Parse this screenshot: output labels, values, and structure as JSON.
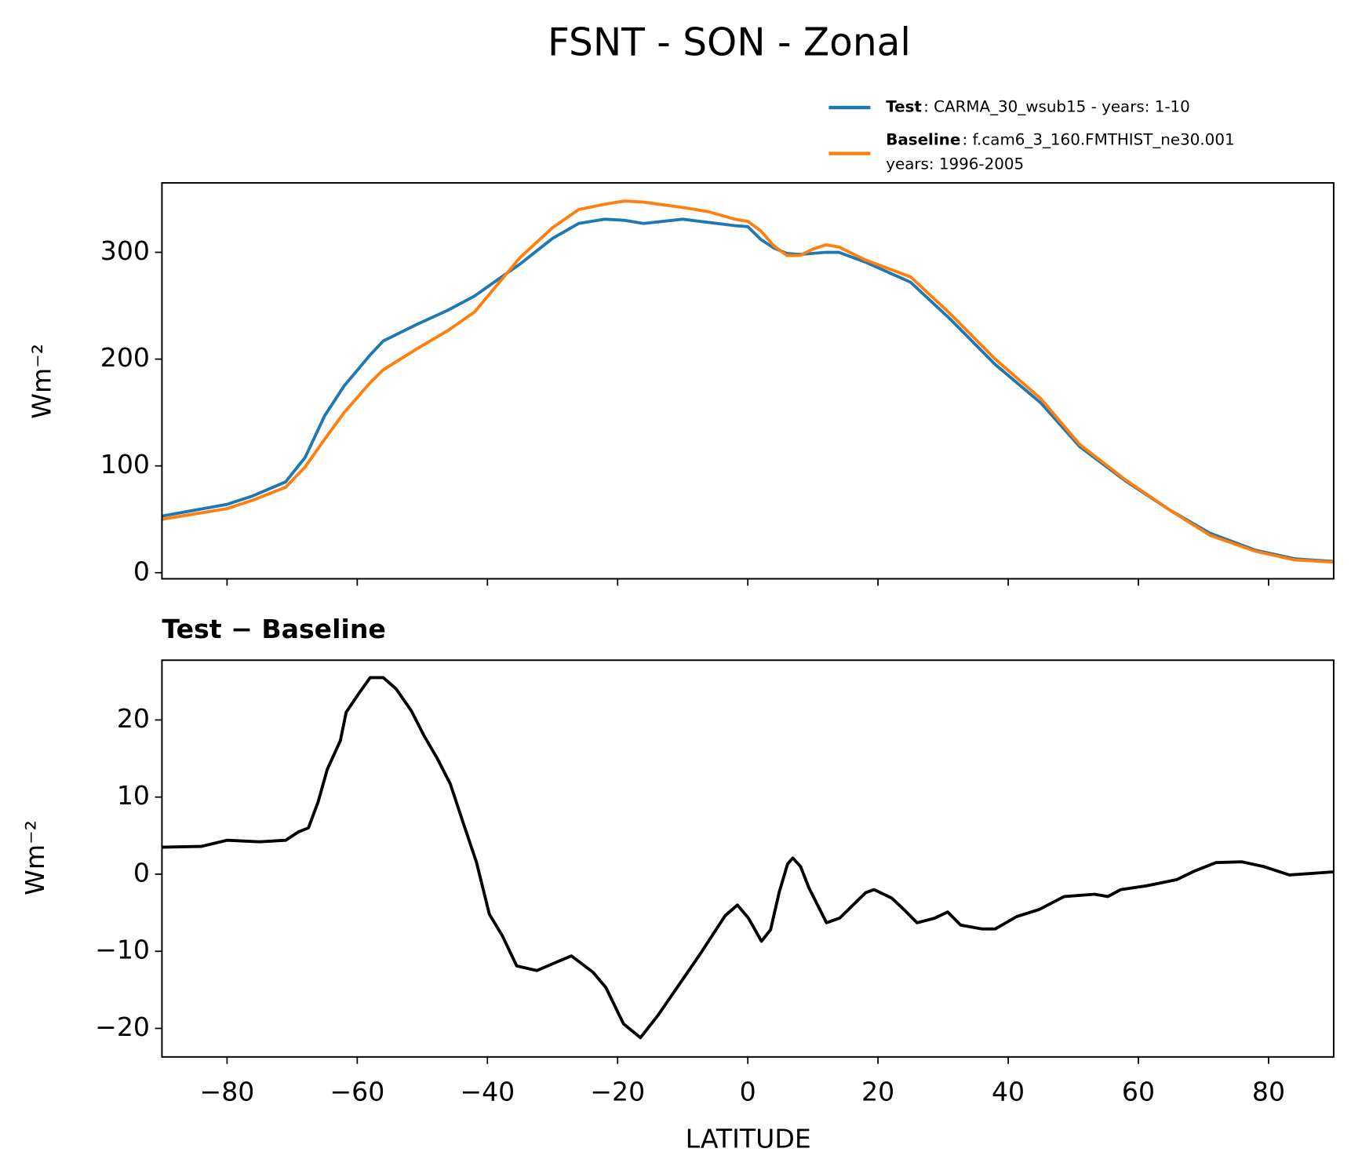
{
  "chart_data": [
    {
      "type": "line",
      "title": "FSNT - SON - Zonal",
      "ylabel": "Wm⁻²",
      "x": [
        -90,
        -80,
        -76,
        -71,
        -68,
        -65,
        -62,
        -58,
        -56,
        -51,
        -46,
        -42,
        -35,
        -30,
        -26,
        -22,
        -19,
        -16,
        -10,
        -6,
        -2,
        0,
        2,
        4,
        6,
        8,
        10,
        12,
        14,
        18,
        25,
        31,
        38,
        45,
        51,
        58,
        65,
        71,
        78,
        84,
        90
      ],
      "series": [
        {
          "name": "Test",
          "label": [
            ": CARMA_30_wsub15 - years: 1-10"
          ],
          "color": "#1f77b4",
          "values": [
            53,
            64,
            72,
            85,
            108,
            147,
            175,
            204,
            217,
            232,
            246,
            259,
            289,
            313,
            327,
            331,
            330,
            327,
            331,
            328,
            325,
            324,
            312,
            304,
            299,
            298,
            299,
            300,
            300,
            291,
            272,
            238,
            195,
            159,
            118,
            86,
            58,
            37,
            21,
            13,
            10.5
          ]
        },
        {
          "name": "Baseline",
          "label": [
            ": f.cam6_3_160.FMTHIST_ne30.001",
            "years: 1996-2005"
          ],
          "color": "#ff7f0e",
          "values": [
            50,
            60,
            68,
            80,
            99,
            125,
            150,
            178,
            190,
            209,
            227,
            244,
            295,
            323,
            340,
            345,
            348,
            347,
            342,
            338,
            331,
            329,
            320,
            306,
            297,
            297,
            303,
            307,
            305,
            293,
            277,
            243,
            200,
            163,
            120,
            87,
            58,
            35,
            20,
            12,
            10
          ]
        }
      ],
      "xlim": [
        -90,
        90
      ],
      "ylim": [
        -5.7,
        365
      ],
      "xticks": [
        {
          "value": -80,
          "label": "−80"
        },
        {
          "value": -60,
          "label": "−60"
        },
        {
          "value": -40,
          "label": "−40"
        },
        {
          "value": -20,
          "label": "−20"
        },
        0,
        20,
        40,
        60,
        80
      ],
      "yticks": [
        0,
        100,
        200,
        300
      ],
      "grid": false
    },
    {
      "type": "line",
      "title": "Test − Baseline",
      "xlabel": "LATITUDE",
      "ylabel": "Wm⁻²",
      "x": [
        -90,
        -84,
        -80,
        -75,
        -71,
        -69,
        -67.5,
        -66,
        -64.6,
        -62.6,
        -61.7,
        -59.7,
        -58,
        -56,
        -54,
        -51.7,
        -49.7,
        -47.7,
        -45.7,
        -43.7,
        -41.7,
        -39.7,
        -37.7,
        -35.5,
        -32.4,
        -29.1,
        -27.1,
        -23.8,
        -21.8,
        -19.1,
        -16.5,
        -13.8,
        -9.8,
        -7.2,
        -3.5,
        -1.6,
        0.1,
        2.1,
        3.5,
        4.8,
        6.1,
        6.9,
        8.1,
        9.4,
        12.1,
        14.1,
        18.1,
        19.4,
        22.1,
        24,
        26,
        28.7,
        30.7,
        32.7,
        36,
        38,
        41.3,
        44.7,
        48.6,
        53.3,
        55.3,
        57.3,
        61.3,
        65.9,
        68.6,
        71.9,
        75.9,
        79.2,
        83.2,
        90
      ],
      "series": [
        {
          "color": "#000000",
          "values": [
            3.5,
            3.6,
            4.4,
            4.2,
            4.4,
            5.5,
            6,
            9.4,
            13.6,
            17.3,
            21,
            23.5,
            25.5,
            25.5,
            24,
            21.2,
            17.9,
            15,
            11.7,
            6.6,
            1.6,
            -5.2,
            -8,
            -11.9,
            -12.5,
            -11.3,
            -10.6,
            -12.7,
            -14.7,
            -19.4,
            -21.2,
            -18.3,
            -13.4,
            -10.2,
            -5.4,
            -4,
            -5.7,
            -8.7,
            -7.2,
            -2.4,
            1.3,
            2.1,
            1,
            -1.8,
            -6.3,
            -5.7,
            -2.4,
            -2,
            -3.1,
            -4.6,
            -6.3,
            -5.7,
            -4.9,
            -6.6,
            -7.1,
            -7.1,
            -5.5,
            -4.6,
            -2.9,
            -2.6,
            -2.9,
            -2,
            -1.5,
            -0.7,
            0.4,
            1.5,
            1.6,
            1,
            -0.1,
            0.3
          ]
        }
      ],
      "xlim": [
        -90,
        90
      ],
      "ylim": [
        -23.7,
        27.75
      ],
      "xticks": [
        {
          "value": -80,
          "label": "−80"
        },
        {
          "value": -60,
          "label": "−60"
        },
        {
          "value": -40,
          "label": "−40"
        },
        {
          "value": -20,
          "label": "−20"
        },
        0,
        20,
        40,
        60,
        80
      ],
      "yticks": [
        {
          "value": -20,
          "label": "−20"
        },
        {
          "value": -10,
          "label": "−10"
        },
        0,
        10,
        20
      ],
      "grid": false
    }
  ]
}
